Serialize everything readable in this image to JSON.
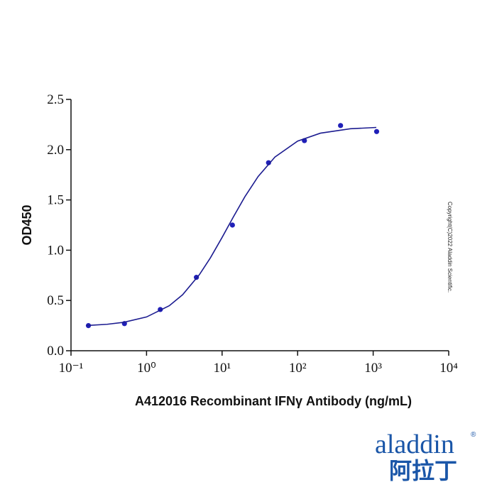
{
  "chart_data": {
    "type": "scatter",
    "y_label": "OD450",
    "x_label": "A412016 Recombinant IFNγ Antibody (ng/mL)",
    "xscale": "log",
    "xlim": [
      0.1,
      10000
    ],
    "xticks": [
      {
        "value": 0.1,
        "label": "10⁻¹"
      },
      {
        "value": 1,
        "label": "10⁰"
      },
      {
        "value": 10,
        "label": "10¹"
      },
      {
        "value": 100,
        "label": "10²"
      },
      {
        "value": 1000,
        "label": "10³"
      },
      {
        "value": 10000,
        "label": "10⁴"
      }
    ],
    "ylim": [
      0,
      2.5
    ],
    "yticks": [
      {
        "value": 0,
        "label": "0.0"
      },
      0.5,
      {
        "value": 1,
        "label": "1.0"
      },
      1.5,
      {
        "value": 2,
        "label": "2.0"
      },
      2.5
    ],
    "series": [
      {
        "marker": "dot",
        "color": "#2020b8",
        "x": [
          0.17,
          0.51,
          1.52,
          4.57,
          13.7,
          41.2,
          123,
          370,
          1111
        ],
        "values": [
          0.25,
          0.27,
          0.41,
          0.73,
          1.25,
          1.87,
          2.09,
          2.24,
          2.18
        ]
      },
      {
        "marker": "line",
        "color": "#1c1c90",
        "x": [
          0.16,
          0.3,
          0.5,
          1,
          2,
          3,
          5,
          7,
          10,
          14,
          20,
          30,
          50,
          100,
          200,
          500,
          1100
        ],
        "values": [
          0.251,
          0.263,
          0.283,
          0.336,
          0.448,
          0.557,
          0.756,
          0.924,
          1.127,
          1.327,
          1.531,
          1.733,
          1.926,
          2.085,
          2.164,
          2.208,
          2.221
        ]
      }
    ],
    "copyright": "Copyright(C)2022 Aladdin Scientific.",
    "logo": {
      "name": "aladdin",
      "mark": "®",
      "chinese": "阿拉丁"
    }
  }
}
